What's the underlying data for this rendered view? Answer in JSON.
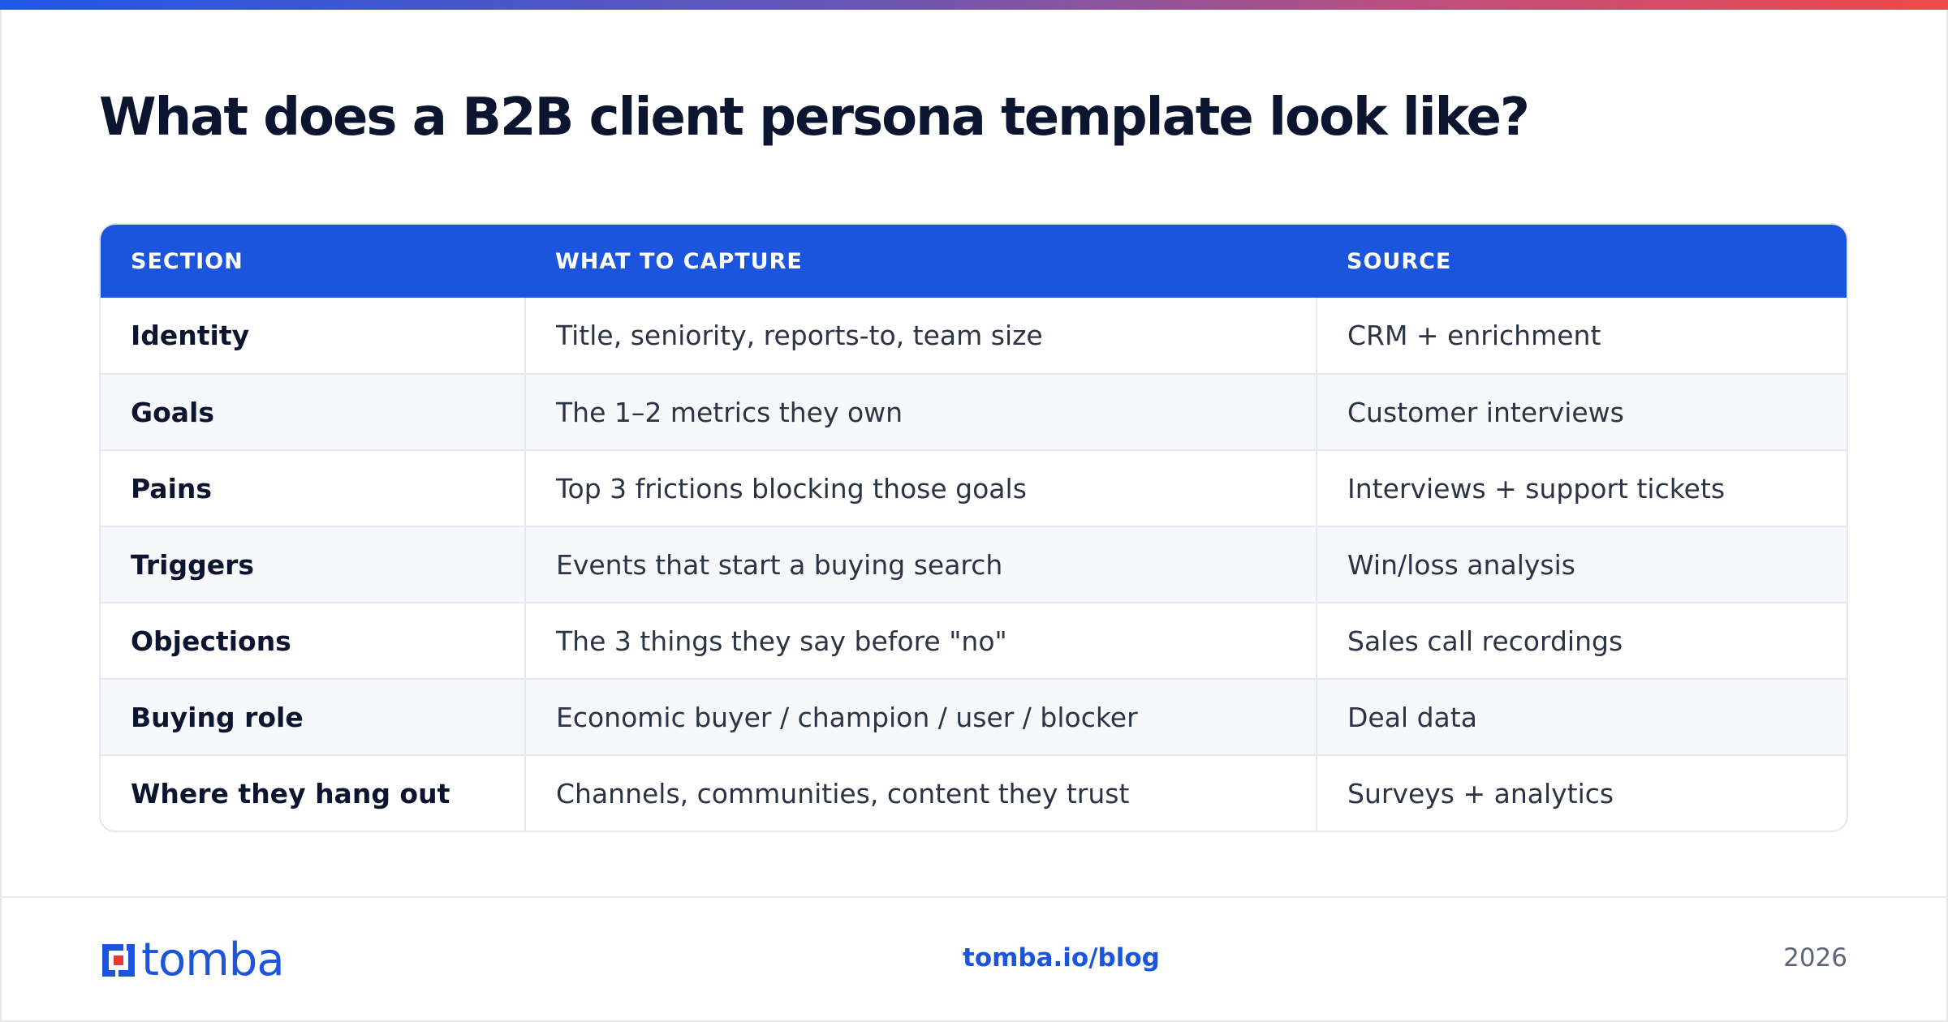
{
  "title": "What does a B2B client persona template look like?",
  "table": {
    "headers": [
      "SECTION",
      "WHAT TO CAPTURE",
      "SOURCE"
    ],
    "rows": [
      [
        "Identity",
        "Title, seniority, reports-to, team size",
        "CRM + enrichment"
      ],
      [
        "Goals",
        "The 1–2 metrics they own",
        "Customer interviews"
      ],
      [
        "Pains",
        "Top 3 frictions blocking those goals",
        "Interviews + support tickets"
      ],
      [
        "Triggers",
        "Events that start a buying search",
        "Win/loss analysis"
      ],
      [
        "Objections",
        "The 3 things they say before \"no\"",
        "Sales call recordings"
      ],
      [
        "Buying role",
        "Economic buyer / champion / user / blocker",
        "Deal data"
      ],
      [
        "Where they hang out",
        "Channels, communities, content they trust",
        "Surveys + analytics"
      ]
    ]
  },
  "footer": {
    "logo_text": "tomba",
    "link": "tomba.io/blog",
    "year": "2026"
  },
  "colors": {
    "accent": "#1b55dd",
    "logo_red": "#e53935",
    "gradient_start": "#1f57e6",
    "gradient_end": "#ef4a4a"
  }
}
